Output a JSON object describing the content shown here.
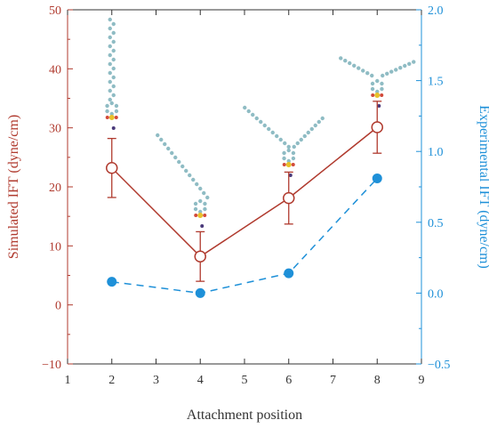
{
  "chart_data": {
    "type": "line",
    "xlabel": "Attachment position",
    "ylabel_left": "Simulated IFT (dyne/cm)",
    "ylabel_right": "Experimental IFT (dyne/cm)",
    "xlim": [
      1,
      9
    ],
    "ylim_left": [
      -10,
      50
    ],
    "ylim_right": [
      -0.5,
      2.0
    ],
    "x_ticks": [
      "1",
      "2",
      "3",
      "4",
      "5",
      "6",
      "7",
      "8",
      "9"
    ],
    "y_left_ticks": [
      "−10",
      "0",
      "10",
      "20",
      "30",
      "40",
      "50"
    ],
    "y_right_ticks": [
      "−0.5",
      "0.0",
      "0.5",
      "1.0",
      "1.5",
      "2.0"
    ],
    "grid": false,
    "legend": "none",
    "colors": {
      "left": "#b03a2e",
      "right": "#1e90d8",
      "axis": "#333333"
    },
    "series": [
      {
        "axis": "left",
        "style": "solid line, open circle markers, error bars",
        "x": [
          2,
          4,
          6,
          8
        ],
        "y": [
          23.2,
          8.2,
          18.1,
          30.1
        ],
        "error": [
          5.0,
          4.2,
          4.4,
          4.4
        ]
      },
      {
        "axis": "right",
        "style": "dashed line, filled circle markers",
        "x": [
          2,
          4,
          6,
          8
        ],
        "y": [
          0.08,
          0.0,
          0.14,
          0.81
        ]
      }
    ],
    "annotations": [
      {
        "type": "molecule-structure-image",
        "x": 2
      },
      {
        "type": "molecule-structure-image",
        "x": 4
      },
      {
        "type": "molecule-structure-image",
        "x": 6
      },
      {
        "type": "molecule-structure-image",
        "x": 8
      }
    ]
  }
}
